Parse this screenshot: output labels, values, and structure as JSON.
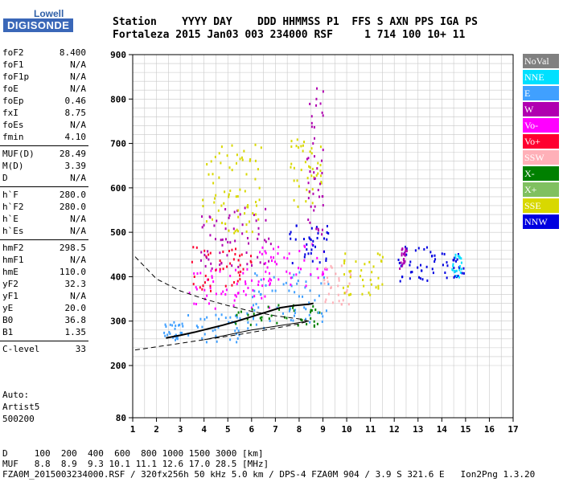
{
  "logo": {
    "line1": "Lowell",
    "line2": "DIGISONDE"
  },
  "header": {
    "labels_line": "Station    YYYY DAY    DDD HHMMSS P1  FFS S AXN PPS IGA PS",
    "values_line": "Fortaleza 2015 Jan03 003 234000 RSF     1 714 100 10+ 11"
  },
  "params_groups": [
    [
      {
        "k": "foF2",
        "v": "8.400"
      },
      {
        "k": "foF1",
        "v": "N/A"
      },
      {
        "k": "foF1p",
        "v": "N/A"
      },
      {
        "k": "foE",
        "v": "N/A"
      },
      {
        "k": "foEp",
        "v": "0.46"
      },
      {
        "k": "fxI",
        "v": "8.75"
      },
      {
        "k": "foEs",
        "v": "N/A"
      },
      {
        "k": "fmin",
        "v": "4.10"
      }
    ],
    [
      {
        "k": "MUF(D)",
        "v": "28.49"
      },
      {
        "k": "M(D)",
        "v": "3.39"
      },
      {
        "k": "D",
        "v": "N/A"
      }
    ],
    [
      {
        "k": "h`F",
        "v": "280.0"
      },
      {
        "k": "h`F2",
        "v": "280.0"
      },
      {
        "k": "h`E",
        "v": "N/A"
      },
      {
        "k": "h`Es",
        "v": "N/A"
      }
    ],
    [
      {
        "k": "hmF2",
        "v": "298.5"
      },
      {
        "k": "hmF1",
        "v": "N/A"
      },
      {
        "k": "hmE",
        "v": "110.0"
      },
      {
        "k": "yF2",
        "v": "32.3"
      },
      {
        "k": "yF1",
        "v": "N/A"
      },
      {
        "k": "yE",
        "v": "20.0"
      },
      {
        "k": "B0",
        "v": "36.8"
      },
      {
        "k": "B1",
        "v": "1.35"
      }
    ],
    [
      {
        "k": "C-level",
        "v": "33"
      }
    ]
  ],
  "auto": {
    "l1": "Auto:",
    "l2": "Artist5",
    "l3": "500200"
  },
  "legend": [
    {
      "label": "NoVal",
      "color": "#808080"
    },
    {
      "label": "NNE",
      "color": "#00e0ff"
    },
    {
      "label": "E",
      "color": "#40a0ff"
    },
    {
      "label": "W",
      "color": "#b000b0"
    },
    {
      "label": "Vo-",
      "color": "#ff00ff"
    },
    {
      "label": "Vo+",
      "color": "#ff0030"
    },
    {
      "label": "SSW",
      "color": "#ffb0b8"
    },
    {
      "label": "X-",
      "color": "#008000"
    },
    {
      "label": "X+",
      "color": "#80c060"
    },
    {
      "label": "SSE",
      "color": "#d8d800"
    },
    {
      "label": "NNW",
      "color": "#0000e0"
    }
  ],
  "chart_data": {
    "type": "scatter",
    "xlim": [
      1,
      17
    ],
    "ylim": [
      80,
      900
    ],
    "x_ticks": [
      "1",
      "2",
      "3",
      "4",
      "5",
      "6",
      "7",
      "8",
      "9",
      "10",
      "11",
      "12",
      "13",
      "14",
      "15",
      "16",
      "17"
    ],
    "y_ticks": [
      "80",
      "200",
      "300",
      "400",
      "500",
      "600",
      "700",
      "800",
      "900"
    ],
    "y_tick_values": [
      80,
      200,
      300,
      400,
      500,
      600,
      700,
      800,
      900
    ],
    "y_scale": "piecewise: 80-200 compressed, 200-900 linear",
    "grid": true,
    "profile_x": [
      2.4,
      3.0,
      3.6,
      4.2,
      4.8,
      5.4,
      6.0,
      6.6,
      7.2,
      7.8,
      8.4,
      8.6
    ],
    "profile_y": [
      262,
      268,
      275,
      283,
      291,
      300,
      310,
      320,
      330,
      335,
      338,
      340
    ],
    "dashed_upper_x": [
      1.1,
      2.0,
      3.0,
      4.0,
      5.0,
      6.0,
      7.0,
      8.0,
      8.4
    ],
    "dashed_upper_y": [
      445,
      395,
      368,
      350,
      335,
      322,
      312,
      305,
      300
    ],
    "dashed_lower_x": [
      1.1,
      2.5,
      4.0,
      5.5,
      7.0,
      8.0,
      8.4
    ],
    "dashed_lower_y": [
      235,
      246,
      258,
      270,
      284,
      294,
      300
    ],
    "clusters": [
      {
        "x": [
          2.2,
          3.0
        ],
        "y": [
          255,
          300
        ],
        "color": "#40a0ff"
      },
      {
        "x": [
          3.0,
          6.5
        ],
        "y": [
          255,
          320
        ],
        "color": "#40a0ff"
      },
      {
        "x": [
          3.2,
          6.8
        ],
        "y": [
          330,
          420
        ],
        "color": "#ff00ff"
      },
      {
        "x": [
          3.4,
          6.0
        ],
        "y": [
          370,
          470
        ],
        "color": "#ff0030"
      },
      {
        "x": [
          3.8,
          6.8
        ],
        "y": [
          420,
          560
        ],
        "color": "#b000b0"
      },
      {
        "x": [
          3.9,
          6.4
        ],
        "y": [
          500,
          700
        ],
        "color": "#d8d800"
      },
      {
        "x": [
          5.0,
          8.9
        ],
        "y": [
          290,
          340
        ],
        "color": "#008000"
      },
      {
        "x": [
          6.0,
          9.3
        ],
        "y": [
          300,
          420
        ],
        "color": "#40a0ff"
      },
      {
        "x": [
          6.2,
          9.2
        ],
        "y": [
          380,
          480
        ],
        "color": "#ff00ff"
      },
      {
        "x": [
          7.5,
          9.2
        ],
        "y": [
          430,
          520
        ],
        "color": "#0000e0"
      },
      {
        "x": [
          7.6,
          9.0
        ],
        "y": [
          560,
          720
        ],
        "color": "#d8d800"
      },
      {
        "x": [
          8.3,
          9.0
        ],
        "y": [
          480,
          840
        ],
        "color": "#b000b0"
      },
      {
        "x": [
          9.0,
          10.2
        ],
        "y": [
          340,
          430
        ],
        "color": "#ffb0b8"
      },
      {
        "x": [
          9.8,
          11.6
        ],
        "y": [
          360,
          460
        ],
        "color": "#d8d800"
      },
      {
        "x": [
          12.0,
          13.6
        ],
        "y": [
          390,
          470
        ],
        "color": "#0000e0"
      },
      {
        "x": [
          13.5,
          14.9
        ],
        "y": [
          400,
          460
        ],
        "color": "#0000e0"
      },
      {
        "x": [
          14.4,
          14.8
        ],
        "y": [
          400,
          460
        ],
        "color": "#00e0ff"
      },
      {
        "x": [
          12.2,
          12.5
        ],
        "y": [
          420,
          470
        ],
        "color": "#b000b0"
      }
    ]
  },
  "footer": {
    "d_line": "D     100  200  400  600  800 1000 1500 3000 [km]",
    "muf_line": "MUF   8.8  8.9  9.3 10.1 11.1 12.6 17.0 28.5 [MHz]",
    "file_line": "FZA0M_2015003234000.RSF / 320fx256h 50 kHz 5.0 km / DPS-4 FZA0M 904 / 3.9 S 321.6 E   Ion2Png 1.3.20"
  }
}
